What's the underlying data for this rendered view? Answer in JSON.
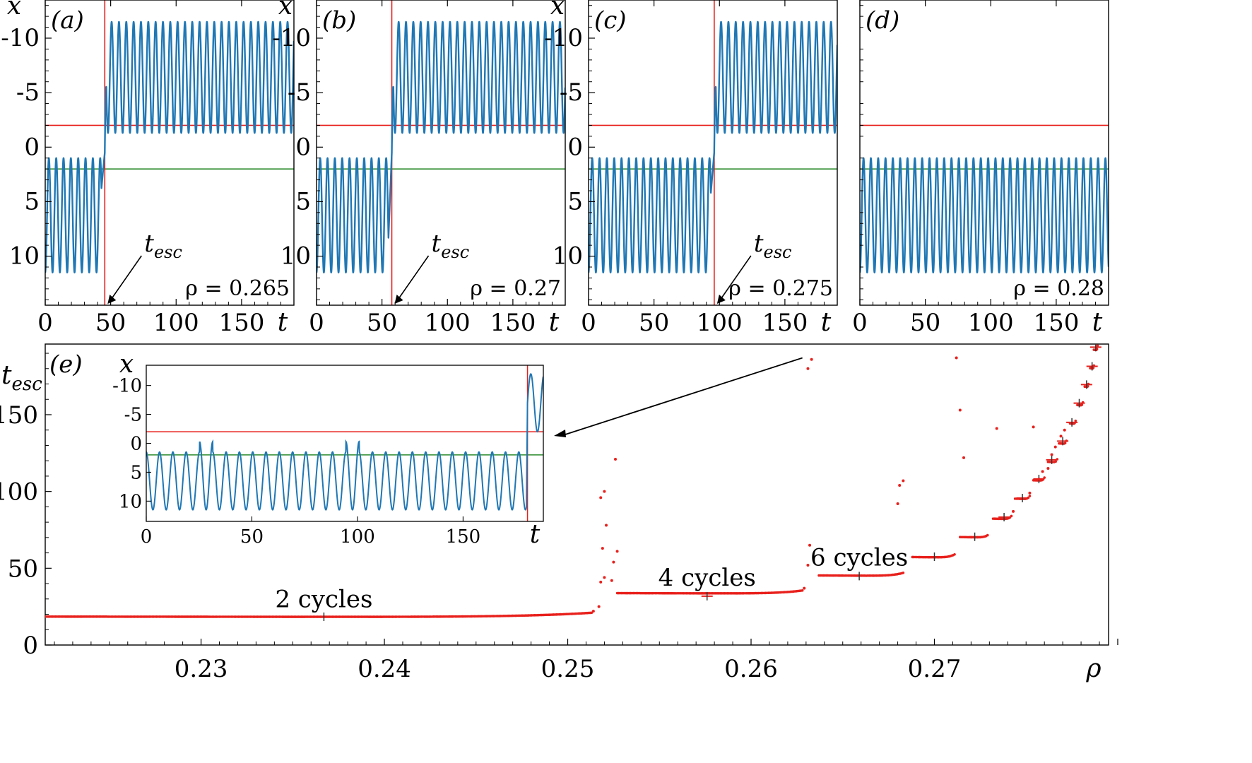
{
  "chart_data": [
    {
      "panel": "(a)",
      "type": "line",
      "rho_label": "ρ = 0.265",
      "xlabel": "t",
      "ylabel": "x",
      "xlim": [
        0,
        190
      ],
      "ylim": [
        14.5,
        -13.5
      ],
      "xticks": [
        0,
        50,
        100,
        150
      ],
      "yticks": [
        10,
        5,
        0,
        -5,
        -10
      ],
      "ytick_labels": [
        "10",
        "5",
        "0",
        "-5",
        "-10"
      ],
      "t_esc": 45.5,
      "escape_label": "t_esc",
      "red_hline": -2.0,
      "green_hline": 2.0,
      "series": [
        {
          "name": "x(t)",
          "phases": [
            {
              "t0": 0,
              "t1": 43,
              "min": 1.0,
              "max": 11.5,
              "period": 5.6,
              "mode": "before"
            },
            {
              "t0": 45.5,
              "t1": 190,
              "min": -11.5,
              "max": -1.3,
              "period": 5.6,
              "mode": "after"
            }
          ]
        }
      ]
    },
    {
      "panel": "(b)",
      "type": "line",
      "rho_label": "ρ = 0.27",
      "xlabel": "t",
      "ylabel": "x",
      "xlim": [
        0,
        190
      ],
      "ylim": [
        14.5,
        -13.5
      ],
      "xticks": [
        0,
        50,
        100,
        150
      ],
      "yticks": [
        10,
        5,
        0,
        -5,
        -10
      ],
      "ytick_labels": [
        "10",
        "5",
        "0",
        "-5",
        "-10"
      ],
      "t_esc": 57.5,
      "escape_label": "t_esc",
      "red_hline": -2.0,
      "green_hline": 2.0,
      "series": [
        {
          "name": "x(t)",
          "phases": [
            {
              "t0": 0,
              "t1": 55,
              "min": 1.0,
              "max": 11.5,
              "period": 5.6,
              "mode": "before"
            },
            {
              "t0": 57.5,
              "t1": 190,
              "min": -11.5,
              "max": -1.3,
              "period": 5.6,
              "mode": "after"
            }
          ]
        }
      ]
    },
    {
      "panel": "(c)",
      "type": "line",
      "rho_label": "ρ = 0.275",
      "xlabel": "t",
      "ylabel": "x",
      "xlim": [
        0,
        190
      ],
      "ylim": [
        14.5,
        -13.5
      ],
      "xticks": [
        0,
        50,
        100,
        150
      ],
      "yticks": [
        10,
        5,
        0,
        -5,
        -10
      ],
      "ytick_labels": [
        "10",
        "5",
        "0",
        "-5",
        "-10"
      ],
      "t_esc": 96,
      "escape_label": "t_esc",
      "red_hline": -2.0,
      "green_hline": 2.0,
      "series": [
        {
          "name": "x(t)",
          "phases": [
            {
              "t0": 0,
              "t1": 93.5,
              "min": 1.0,
              "max": 11.5,
              "period": 5.6,
              "mode": "before"
            },
            {
              "t0": 96,
              "t1": 190,
              "min": -11.5,
              "max": -1.3,
              "period": 5.6,
              "mode": "after"
            }
          ]
        }
      ]
    },
    {
      "panel": "(d)",
      "type": "line",
      "rho_label": "ρ = 0.28",
      "xlabel": "t",
      "ylabel": "",
      "xlim": [
        0,
        190
      ],
      "ylim": [
        14.5,
        -13.5
      ],
      "xticks": [
        0,
        50,
        100,
        150
      ],
      "yticks": [],
      "ytick_labels": [],
      "t_esc": null,
      "escape_label": "",
      "red_hline": -2.0,
      "green_hline": 2.0,
      "series": [
        {
          "name": "x(t)",
          "phases": [
            {
              "t0": 0,
              "t1": 190,
              "min": 1.0,
              "max": 11.5,
              "period": 5.6,
              "mode": "before"
            }
          ]
        }
      ]
    },
    {
      "panel": "(e)",
      "type": "scatter",
      "xlabel": "ρ",
      "ylabel": "t_esc",
      "xlim": [
        0.2215,
        0.2795
      ],
      "ylim": [
        0,
        196
      ],
      "xticks": [
        0.23,
        0.24,
        0.25,
        0.26,
        0.27
      ],
      "xtick_labels": [
        "0.23",
        "0.24",
        "0.25",
        "0.26",
        "0.27"
      ],
      "yticks": [
        0,
        50,
        100,
        150
      ],
      "ytick_labels": [
        "0",
        "50",
        "100",
        "150"
      ],
      "plateaus": [
        {
          "rho_start": 0.2215,
          "rho_end": 0.2513,
          "t_start": 18.2,
          "t_end": 21,
          "mid": 0.2367,
          "mid_t": 18.4,
          "label": "2 cycles"
        },
        {
          "rho_start": 0.2527,
          "rho_end": 0.2628,
          "t_start": 33.5,
          "t_end": 35.5,
          "mid": 0.2576,
          "mid_t": 31.8,
          "label": "4 cycles"
        },
        {
          "rho_start": 0.2637,
          "rho_end": 0.2683,
          "t_start": 45,
          "t_end": 47,
          "mid": 0.2659,
          "mid_t": 44.9,
          "label": "6 cycles"
        },
        {
          "rho_start": 0.2688,
          "rho_end": 0.2711,
          "t_start": 57,
          "t_end": 59,
          "mid": 0.27,
          "mid_t": 57.5,
          "label": ""
        },
        {
          "rho_start": 0.2714,
          "rho_end": 0.2729,
          "t_start": 70,
          "t_end": 71.5,
          "mid": 0.2722,
          "mid_t": 70.5,
          "label": ""
        },
        {
          "rho_start": 0.2732,
          "rho_end": 0.2742,
          "t_start": 82,
          "t_end": 84,
          "mid": 0.2738,
          "mid_t": 83.3,
          "label": ""
        },
        {
          "rho_start": 0.2744,
          "rho_end": 0.2752,
          "t_start": 95,
          "t_end": 97,
          "mid": 0.2748,
          "mid_t": 95.7,
          "label": ""
        },
        {
          "rho_start": 0.2754,
          "rho_end": 0.276,
          "t_start": 107,
          "t_end": 109,
          "mid": 0.2757,
          "mid_t": 108.1,
          "label": ""
        },
        {
          "rho_start": 0.2762,
          "rho_end": 0.2767,
          "t_start": 119,
          "t_end": 121,
          "mid": 0.2764,
          "mid_t": 120.6,
          "label": ""
        },
        {
          "rho_start": 0.2768,
          "rho_end": 0.2772,
          "t_start": 131,
          "t_end": 133,
          "mid": 0.277,
          "mid_t": 132.8,
          "label": ""
        },
        {
          "rho_start": 0.2774,
          "rho_end": 0.2777,
          "t_start": 144,
          "t_end": 146,
          "mid": 0.2775,
          "mid_t": 145.0,
          "label": ""
        },
        {
          "rho_start": 0.2778,
          "rho_end": 0.2781,
          "t_start": 156,
          "t_end": 158,
          "mid": 0.2779,
          "mid_t": 157.5,
          "label": ""
        },
        {
          "rho_start": 0.2782,
          "rho_end": 0.2784,
          "t_start": 168,
          "t_end": 170,
          "mid": 0.2783,
          "mid_t": 169.6,
          "label": ""
        },
        {
          "rho_start": 0.2785,
          "rho_end": 0.2787,
          "t_start": 180,
          "t_end": 182,
          "mid": 0.2786,
          "mid_t": 181.5,
          "label": ""
        },
        {
          "rho_start": 0.2787,
          "rho_end": 0.2789,
          "t_start": 192,
          "t_end": 195,
          "mid": 0.2788,
          "mid_t": 194,
          "label": ""
        }
      ],
      "scatter_points": [
        [
          0.2514,
          22
        ],
        [
          0.2517,
          25
        ],
        [
          0.2518,
          41
        ],
        [
          0.252,
          44
        ],
        [
          0.2519,
          63
        ],
        [
          0.2521,
          78
        ],
        [
          0.2518,
          96
        ],
        [
          0.252,
          100
        ],
        [
          0.2524,
          42
        ],
        [
          0.2525,
          54
        ],
        [
          0.2527,
          61
        ],
        [
          0.2526,
          121
        ],
        [
          0.2629,
          37
        ],
        [
          0.2631,
          52
        ],
        [
          0.2632,
          65
        ],
        [
          0.2631,
          180
        ],
        [
          0.2633,
          186
        ],
        [
          0.268,
          92
        ],
        [
          0.2681,
          104
        ],
        [
          0.2683,
          107
        ],
        [
          0.2716,
          122
        ],
        [
          0.2714,
          153
        ],
        [
          0.2712,
          187
        ],
        [
          0.2734,
          141
        ],
        [
          0.2754,
          142
        ],
        [
          0.2743,
          87
        ],
        [
          0.2752,
          99
        ],
        [
          0.2757,
          108
        ],
        [
          0.2759,
          113
        ],
        [
          0.2762,
          115
        ],
        [
          0.2764,
          124
        ],
        [
          0.2766,
          129
        ],
        [
          0.2769,
          136
        ],
        [
          0.2771,
          140
        ]
      ],
      "inset": {
        "type": "line",
        "xlabel": "t",
        "ylabel": "x",
        "xlim": [
          0,
          188
        ],
        "ylim": [
          13.5,
          -13.5
        ],
        "xticks": [
          0,
          50,
          100,
          150
        ],
        "yticks": [
          10,
          5,
          0,
          -5,
          -10
        ],
        "ytick_labels": [
          "10",
          "5",
          "0",
          "-5",
          "-10"
        ],
        "t_esc": 180.5,
        "red_hline": -2.0,
        "green_hline": 2.0,
        "series": [
          {
            "name": "x(t)",
            "phases": [
              {
                "t0": 0,
                "t1": 180,
                "min": 0,
                "max": 11.5,
                "period": 6.3,
                "mode": "long"
              },
              {
                "t0": 180.5,
                "t1": 188,
                "min": -12,
                "max": -1.5,
                "period": 6.3,
                "mode": "tail"
              }
            ]
          }
        ]
      }
    }
  ]
}
